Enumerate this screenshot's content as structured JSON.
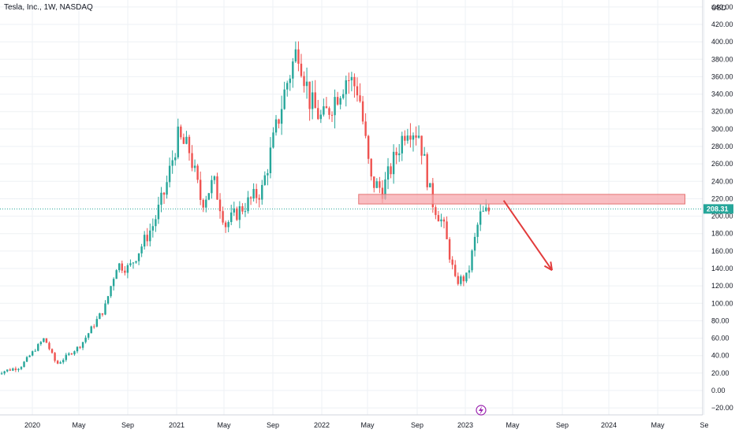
{
  "header": {
    "symbol_title": "Tesla, Inc., 1W, NASDAQ"
  },
  "price_axis": {
    "currency": "USD",
    "last_price_label": "208.31",
    "last_price_color": "#26a69a"
  },
  "colors": {
    "up": "#26a69a",
    "down": "#ef5350",
    "zone_fill": "#f7a8ad",
    "zone_stroke": "#e57373",
    "arrow": "#e23b3b",
    "grid": "#eef1f4",
    "event_icon": "#9c27b0"
  },
  "chart_data": {
    "type": "candlestick",
    "title": "Tesla, Inc., 1W, NASDAQ",
    "x_ticks": [
      "2020",
      "May",
      "Sep",
      "2021",
      "May",
      "Sep",
      "2022",
      "May",
      "Sep",
      "2023",
      "May",
      "Sep",
      "2024",
      "May",
      "Se"
    ],
    "y_ticks": [
      "440.00",
      "420.00",
      "400.00",
      "380.00",
      "360.00",
      "340.00",
      "320.00",
      "300.00",
      "280.00",
      "260.00",
      "240.00",
      "220.00",
      "200.00",
      "180.00",
      "160.00",
      "140.00",
      "120.00",
      "100.00",
      "80.00",
      "60.00",
      "40.00",
      "20.00",
      "0.00",
      "−20.00"
    ],
    "ylim": [
      -28,
      448
    ],
    "last_price": 208.31,
    "resistance_zone": {
      "low": 214,
      "high": 225,
      "from": "2022-04",
      "to": "2024-07"
    },
    "projection_arrow": {
      "from": {
        "date": "2023-04",
        "value": 218
      },
      "to": {
        "date": "2023-08",
        "value": 138
      }
    },
    "weekly_close_path": [
      [
        "2019-10",
        20
      ],
      [
        "2019-12",
        27
      ],
      [
        "2020-02",
        60
      ],
      [
        "2020-03",
        30
      ],
      [
        "2020-05",
        52
      ],
      [
        "2020-07",
        95
      ],
      [
        "2020-08",
        145
      ],
      [
        "2020-09",
        140
      ],
      [
        "2020-11",
        190
      ],
      [
        "2020-12",
        230
      ],
      [
        "2021-01",
        290
      ],
      [
        "2021-02",
        275
      ],
      [
        "2021-03",
        215
      ],
      [
        "2021-04",
        240
      ],
      [
        "2021-05",
        190
      ],
      [
        "2021-06",
        205
      ],
      [
        "2021-08",
        230
      ],
      [
        "2021-10",
        350
      ],
      [
        "2021-11",
        395
      ],
      [
        "2021-12",
        330
      ],
      [
        "2022-01",
        310
      ],
      [
        "2022-03",
        360
      ],
      [
        "2022-04",
        345
      ],
      [
        "2022-05",
        240
      ],
      [
        "2022-06",
        230
      ],
      [
        "2022-08",
        305
      ],
      [
        "2022-09",
        295
      ],
      [
        "2022-10",
        220
      ],
      [
        "2022-11",
        190
      ],
      [
        "2022-12",
        125
      ],
      [
        "2023-01",
        130
      ],
      [
        "2023-02",
        200
      ],
      [
        "2023-03",
        208
      ]
    ]
  }
}
